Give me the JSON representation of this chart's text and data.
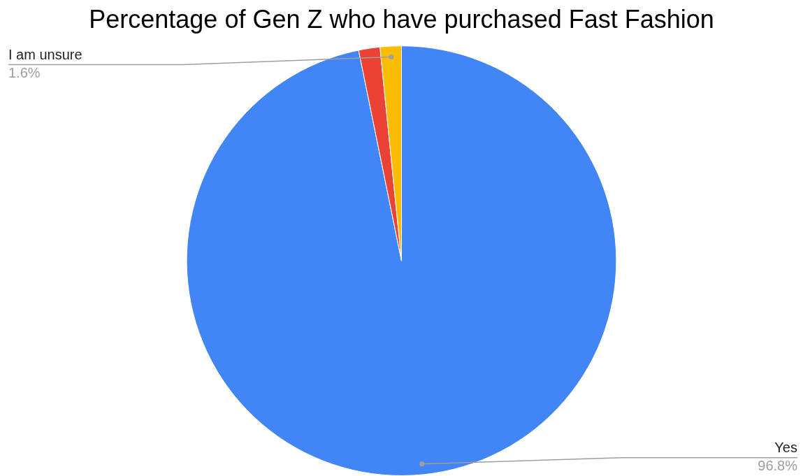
{
  "chart_data": {
    "type": "pie",
    "title": "Percentage of Gen Z who have purchased Fast Fashion",
    "categories": [
      "Yes",
      null,
      "I am unsure"
    ],
    "values": [
      96.8,
      1.6,
      1.6
    ],
    "colors": [
      "#4285f4",
      "#ea4335",
      "#fbbc04"
    ],
    "value_labels": [
      "96.8%",
      null,
      "1.6%"
    ],
    "legend": false
  }
}
